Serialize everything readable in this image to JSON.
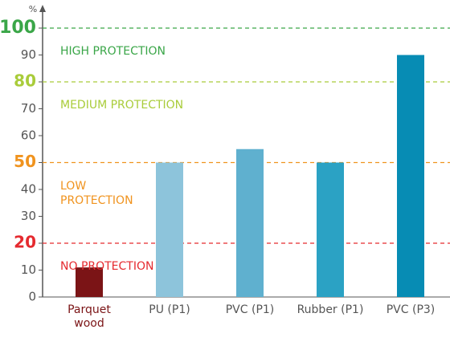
{
  "chart_data": {
    "type": "bar",
    "y_label": "%",
    "categories": [
      "Parquet wood",
      "PU (P1)",
      "PVC (P1)",
      "Rubber (P1)",
      "PVC (P3)"
    ],
    "values": [
      11,
      50,
      55,
      50,
      90
    ],
    "colors": [
      "#7b1416",
      "#8dc4db",
      "#5fb0cf",
      "#2ba2c4",
      "#078cb4"
    ],
    "category_label_colors": [
      "#7b1416",
      "#555555",
      "#555555",
      "#555555",
      "#555555"
    ],
    "ylim": [
      0,
      100
    ],
    "yticks": [
      0,
      10,
      20,
      30,
      40,
      50,
      60,
      70,
      80,
      90,
      100
    ],
    "thresholds": [
      {
        "value": 20,
        "color": "#e52a2f",
        "label": "NO PROTECTION"
      },
      {
        "value": 50,
        "color": "#f0931e",
        "label": "LOW PROTECTION"
      },
      {
        "value": 80,
        "color": "#a9cc3a",
        "label": "MEDIUM PROTECTION"
      },
      {
        "value": 100,
        "color": "#3aa648",
        "label": "HIGH PROTECTION"
      }
    ]
  }
}
